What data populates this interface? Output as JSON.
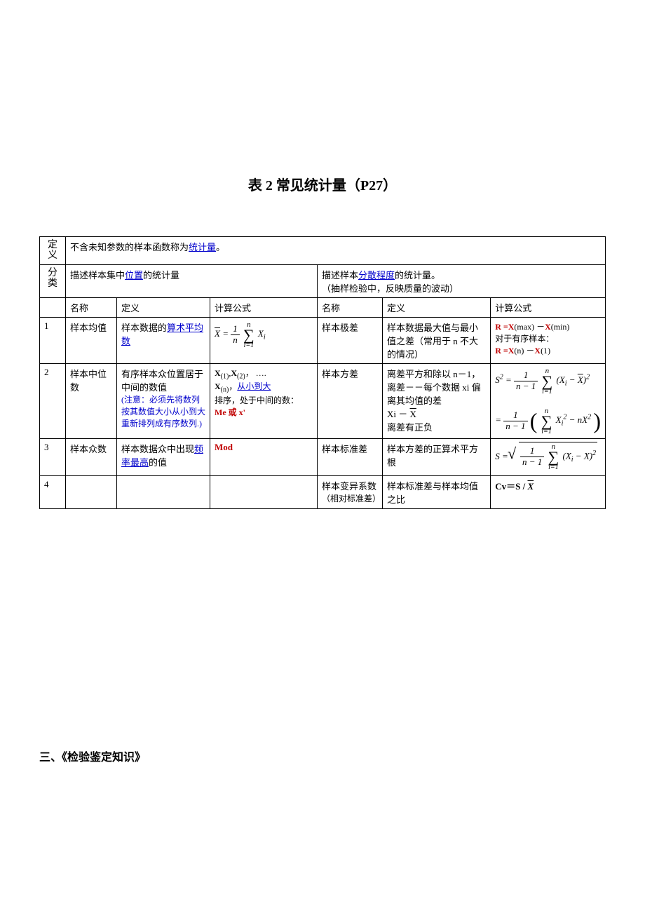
{
  "title_prefix": "表 2  常见统计量",
  "title_page": "（P27）",
  "def_label": "定义",
  "def_text_before": "不含未知参数的样本函数称为",
  "def_term": "统计量",
  "def_text_after": "。",
  "cat_label": "分类",
  "cat_left_before": "描述样本集中",
  "cat_left_term": "位置",
  "cat_left_after": "的统计量",
  "cat_right_before": "描述样本",
  "cat_right_term": "分散程度",
  "cat_right_after": "的统计量。",
  "cat_right_note": "（抽样检验中，反映质量的波动）",
  "hdr_name": "名称",
  "hdr_def": "定义",
  "hdr_calc": "计算公式",
  "row1_idx": "1",
  "row1_name": "样本均值",
  "row1_def_before": "样本数据的",
  "row1_def_term": "算术平均数",
  "row1_name2": "样本极差",
  "row1_def2": "样本数据最大值与最小值之差（常用于 n 不大的情况）",
  "row1_calc2_l1a": "R  =",
  "row1_calc2_l1b": "X",
  "row1_calc2_l1c": "(max)  －",
  "row1_calc2_l1d": "X",
  "row1_calc2_l1e": "(min)",
  "row1_calc2_l2": "对于有序样本：",
  "row1_calc2_l3a": "R  =",
  "row1_calc2_l3b": "X",
  "row1_calc2_l3c": "(n)  －",
  "row1_calc2_l3d": "X",
  "row1_calc2_l3e": "(1)",
  "row2_idx": "2",
  "row2_name": "样本中位数",
  "row2_def_l1": "有序样本众位置居于中间的数值",
  "row2_def_note": "(注意：必须先将数列按其数值大小从小到大重新排列成有序数列.)",
  "row2_calc_l1a": "X",
  "row2_calc_l1b": "(1)",
  "row2_calc_l1c": ",",
  "row2_calc_l1d": "X",
  "row2_calc_l1e": "(2)",
  "row2_calc_l1f": "，  ….",
  "row2_calc_l2a": "X",
  "row2_calc_l2b": "(n)",
  "row2_calc_l2c": "，",
  "row2_calc_l2_term": "从小到大",
  "row2_calc_l3": "排序，处于中间的数：",
  "row2_calc_l4": "Me 或 x'",
  "row2_name2": "样本方差",
  "row2_def2_l1": "离差平方和除以 n－1，",
  "row2_def2_l2": "离差－－每个数据 xi 偏离其均值的差",
  "row2_def2_l3a": "Xi  －  ",
  "row2_def2_l3b": "X",
  "row2_def2_l4": "离差有正负",
  "row3_idx": "3",
  "row3_name": "样本众数",
  "row3_def_before": "样本数据众中出现",
  "row3_def_term": "频率最高",
  "row3_def_after": "的值",
  "row3_calc": "Mod",
  "row3_name2": "样本标准差",
  "row3_def2": "样本方差的正算术平方根",
  "row4_idx": "4",
  "row4_name2_l1": "样本变异系数",
  "row4_name2_l2": "（相对标准差）",
  "row4_def2": "样本标准差与样本均值之比",
  "row4_calc2_a": "Cv＝S / ",
  "row4_calc2_b": "X",
  "footer": "三、《检验鉴定知识》"
}
